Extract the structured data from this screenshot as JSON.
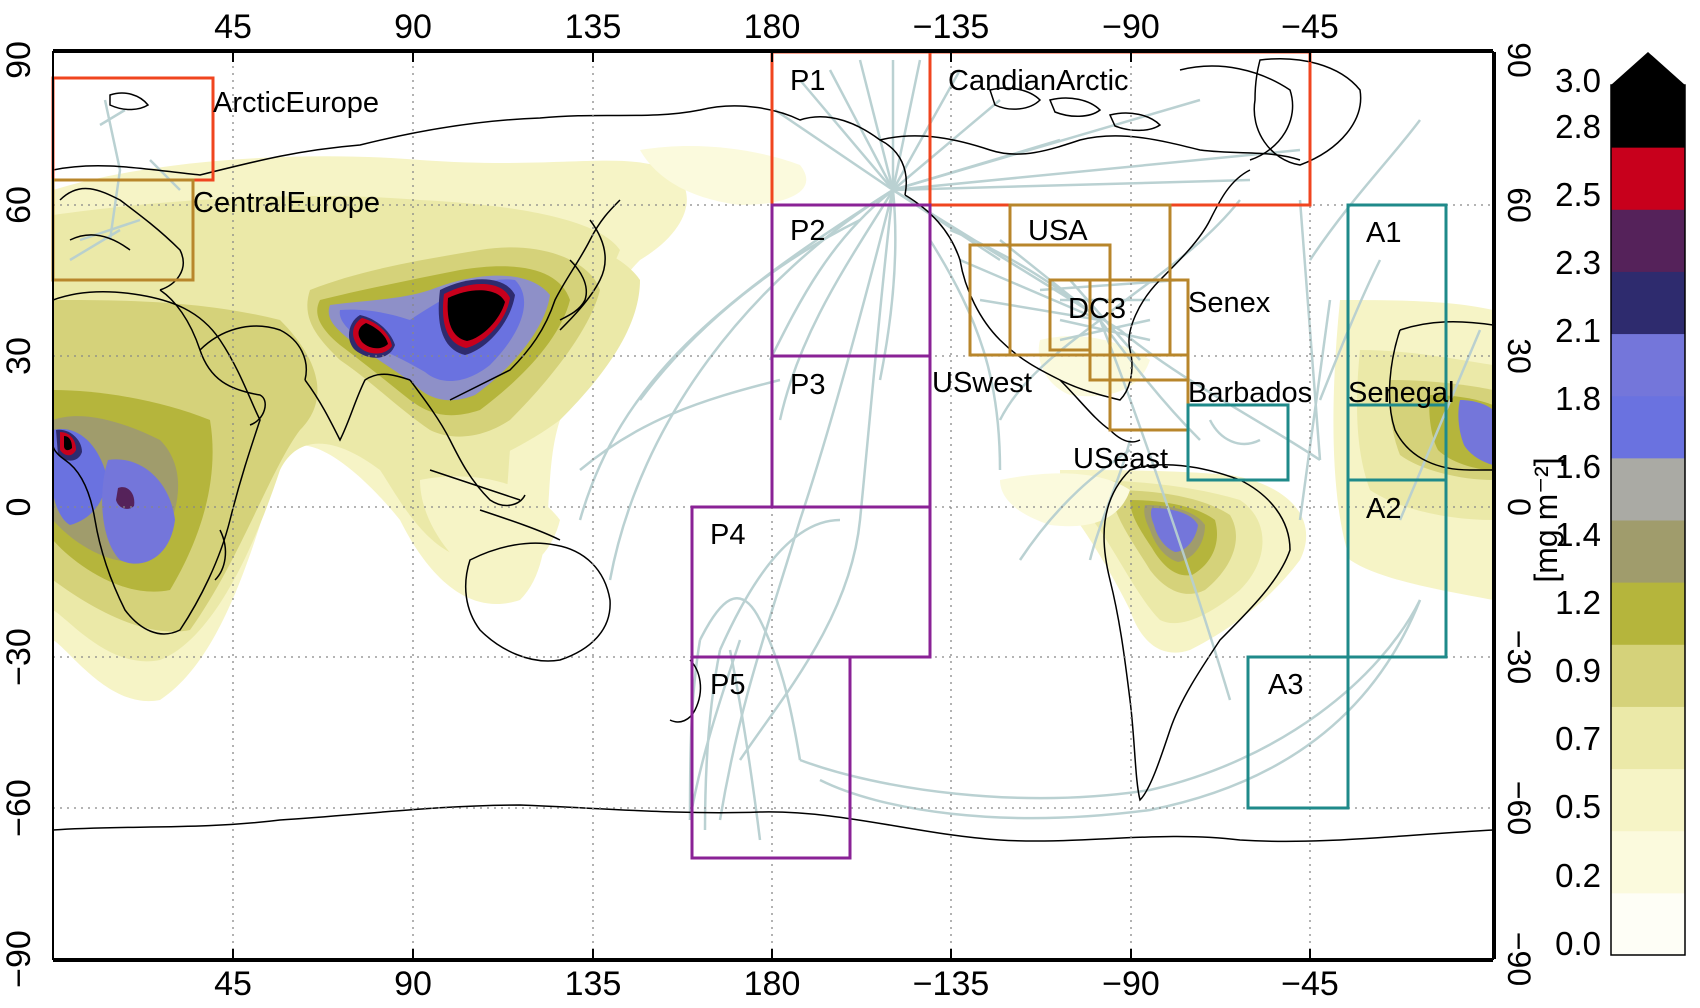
{
  "map": {
    "lon_ticks_top": [
      "45",
      "90",
      "135",
      "180",
      "−135",
      "−90",
      "−45"
    ],
    "lon_ticks_bottom": [
      "45",
      "90",
      "135",
      "180",
      "−135",
      "−90",
      "−45"
    ],
    "lat_ticks_left": [
      "−90",
      "−60",
      "−30",
      "0",
      "30",
      "60",
      "90"
    ],
    "lat_ticks_right": [
      "−90",
      "−60",
      "−30",
      "0",
      "30",
      "60",
      "90"
    ],
    "regions": {
      "arctic_europe": {
        "label": "ArcticEurope",
        "color": "#f0451f"
      },
      "central_europe": {
        "label": "CentralEurope",
        "color": "#b8862b"
      },
      "p1": {
        "label": "P1",
        "color": "#f0451f"
      },
      "canadian_arctic": {
        "label": "CandianArctic",
        "color": "#f0451f"
      },
      "p2": {
        "label": "P2",
        "color": "#8a2296"
      },
      "p3": {
        "label": "P3",
        "color": "#8a2296"
      },
      "p4": {
        "label": "P4",
        "color": "#8a2296"
      },
      "p5": {
        "label": "P5",
        "color": "#8a2296"
      },
      "usa": {
        "label": "USA",
        "color": "#b8862b"
      },
      "dc3": {
        "label": "DC3",
        "color": "#b8862b"
      },
      "senex": {
        "label": "Senex",
        "color": "#b8862b"
      },
      "uswest": {
        "label": "USwest",
        "color": "#b8862b"
      },
      "useast": {
        "label": "USeast",
        "color": "#b8862b"
      },
      "barbados": {
        "label": "Barbados",
        "color": "#1f8a8a"
      },
      "senegal": {
        "label": "Senegal",
        "color": "#1f8a8a"
      },
      "a1": {
        "label": "A1",
        "color": "#1f8a8a"
      },
      "a2": {
        "label": "A2",
        "color": "#1f8a8a"
      },
      "a3": {
        "label": "A3",
        "color": "#1f8a8a"
      }
    },
    "flight_track_color": "#b7cfd0",
    "coastline_color": "#000000"
  },
  "colorbar": {
    "labels": [
      "0.0",
      "0.2",
      "0.5",
      "0.7",
      "0.9",
      "1.2",
      "1.4",
      "1.6",
      "1.8",
      "2.1",
      "2.3",
      "2.5",
      "2.8",
      "3.0"
    ],
    "colors": [
      "#fefef6",
      "#fbfadd",
      "#f6f4c6",
      "#ebe9a8",
      "#d5d27a",
      "#b5b53c",
      "#a09c6c",
      "#aaaaa4",
      "#6a72e0",
      "#7476da",
      "#2e2b6e",
      "#55225a",
      "#c8001c",
      "#000000"
    ],
    "units": "[mg m⁻²]"
  }
}
